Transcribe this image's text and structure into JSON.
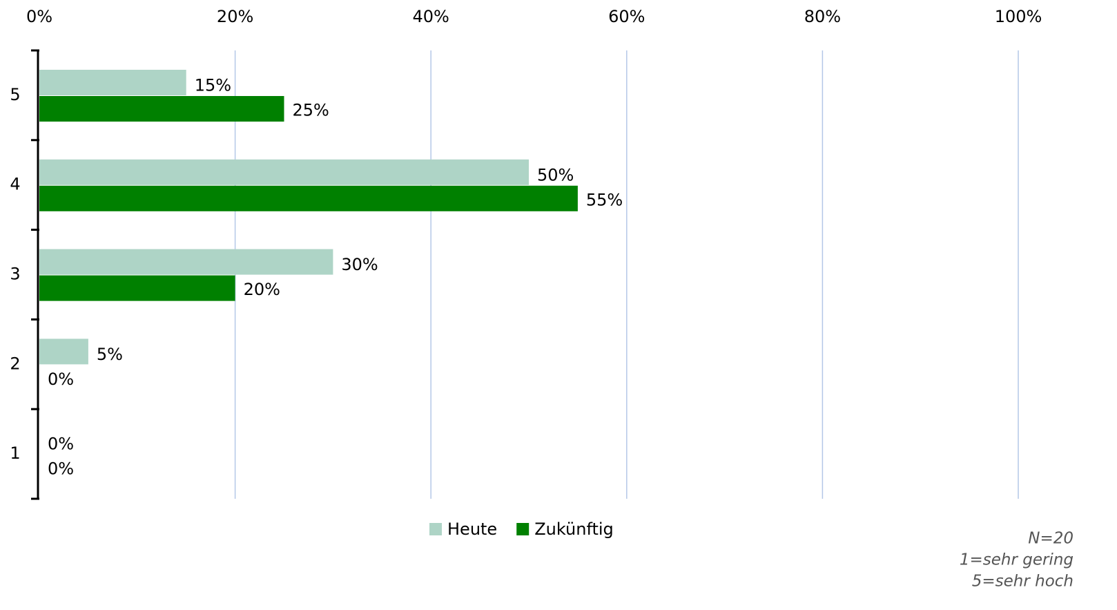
{
  "chart_data": {
    "type": "hbar",
    "categories": [
      "5",
      "4",
      "3",
      "2",
      "1"
    ],
    "series": [
      {
        "name": "Heute",
        "color": "#aed4c6",
        "values": [
          15,
          50,
          30,
          5,
          0
        ],
        "value_labels": [
          "15%",
          "50%",
          "30%",
          "5%",
          "0%"
        ]
      },
      {
        "name": "Zukünftig",
        "color": "#008000",
        "values": [
          25,
          55,
          20,
          0,
          0
        ],
        "value_labels": [
          "25%",
          "55%",
          "20%",
          "0%",
          "0%"
        ]
      }
    ],
    "xlim": [
      0,
      100
    ],
    "xticks": [
      {
        "value": 0,
        "label": "0%"
      },
      {
        "value": 20,
        "label": "20%"
      },
      {
        "value": 40,
        "label": "40%"
      },
      {
        "value": 60,
        "label": "60%"
      },
      {
        "value": 80,
        "label": "80%"
      },
      {
        "value": 100,
        "label": "100%"
      }
    ],
    "grid": true,
    "legend": "bottom",
    "annotations": [
      "N=20",
      "1=sehr gering",
      "5=sehr hoch"
    ]
  }
}
